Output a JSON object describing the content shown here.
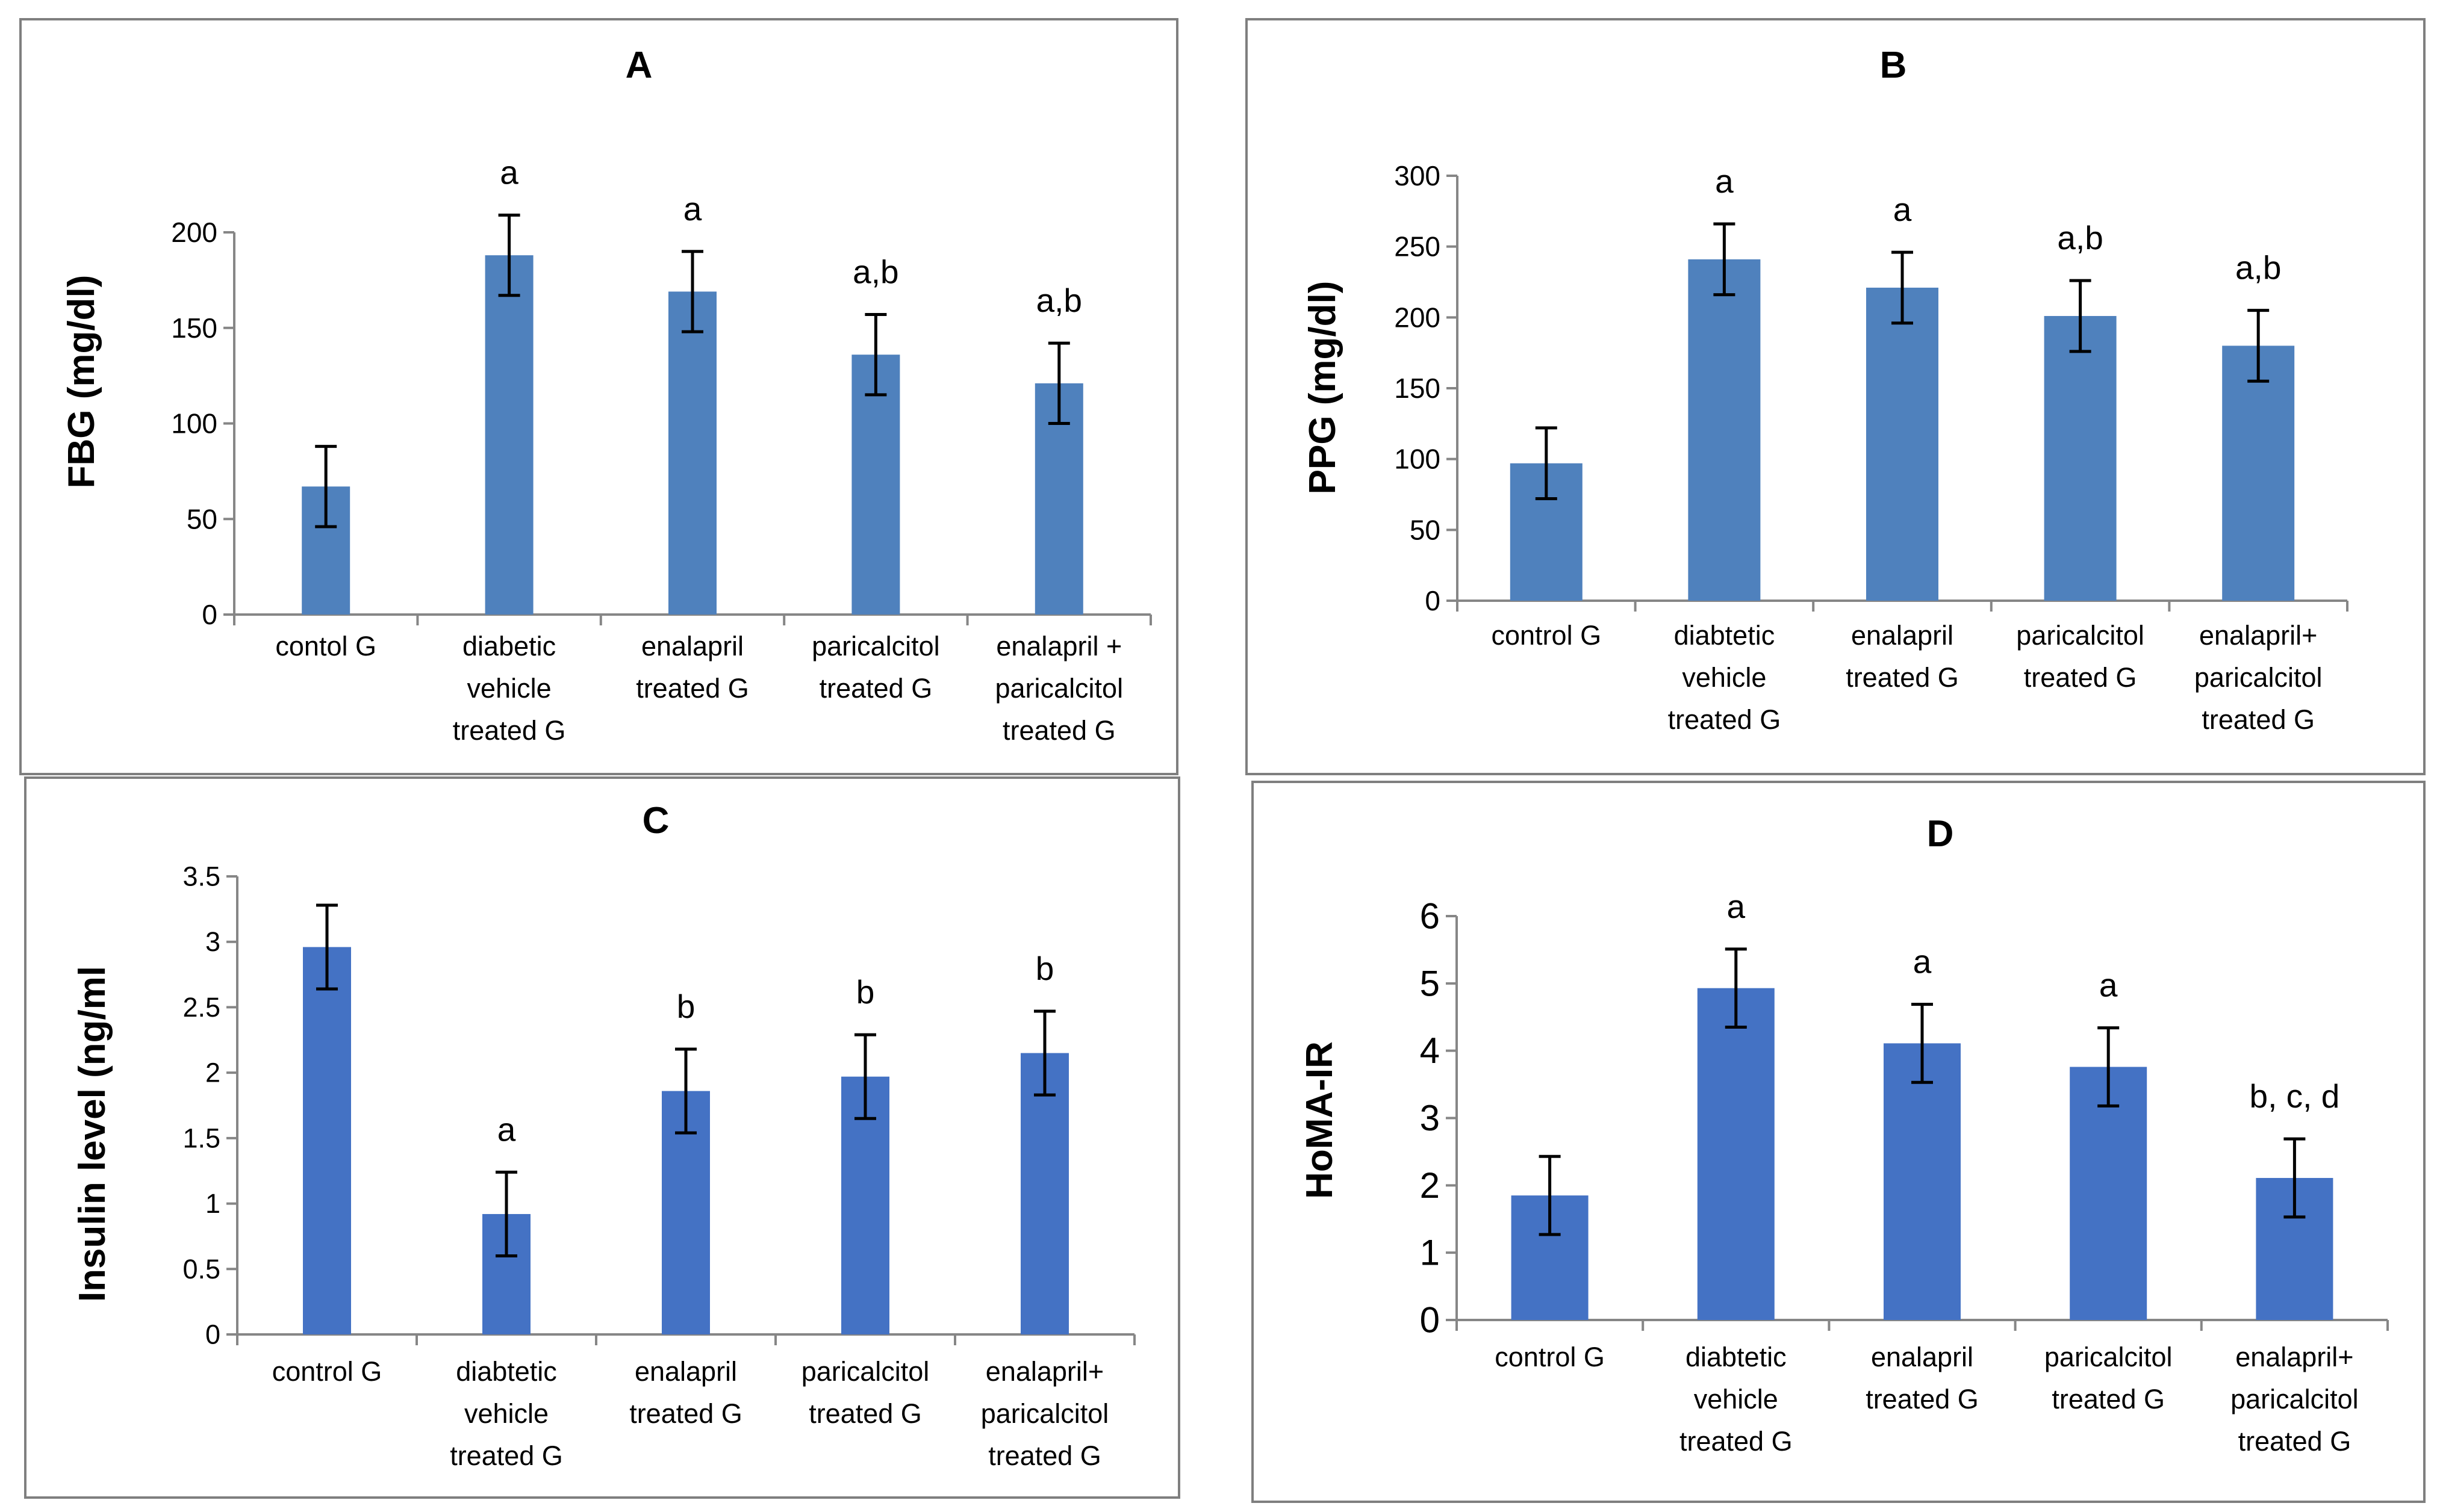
{
  "chart_data": [
    {
      "type": "bar",
      "title": "A",
      "ylabel": "FBG (mg/dl)",
      "xlabel": "",
      "ylim": [
        0,
        200
      ],
      "yticks": [
        "0",
        "50",
        "100",
        "150",
        "200"
      ],
      "yticks_values": [
        0,
        50,
        100,
        150,
        200
      ],
      "categories": [
        [
          "contol G"
        ],
        [
          "diabetic",
          "vehicle",
          "treated G"
        ],
        [
          "enalapril",
          "treated G"
        ],
        [
          "paricalcitol",
          "treated G"
        ],
        [
          "enalapril +",
          "paricalcitol",
          "treated G"
        ]
      ],
      "values": [
        67,
        188,
        169,
        136,
        121
      ],
      "errors": [
        21,
        21,
        21,
        21,
        21
      ],
      "annotations": [
        "",
        "a",
        "a",
        "a,b",
        "a,b"
      ],
      "bar_color": "#4f81bd",
      "grid": false
    },
    {
      "type": "bar",
      "title": "B",
      "ylabel": "PPG (mg/dl)",
      "xlabel": "",
      "ylim": [
        0,
        300
      ],
      "yticks": [
        "0",
        "50",
        "100",
        "150",
        "200",
        "250",
        "300"
      ],
      "yticks_values": [
        0,
        50,
        100,
        150,
        200,
        250,
        300
      ],
      "categories": [
        [
          "control G"
        ],
        [
          "diabtetic",
          "vehicle",
          "treated G"
        ],
        [
          "enalapril",
          "treated G"
        ],
        [
          "paricalcitol",
          "treated G"
        ],
        [
          "enalapril+",
          "paricalcitol",
          "treated G"
        ]
      ],
      "values": [
        97,
        241,
        221,
        201,
        180
      ],
      "errors": [
        25,
        25,
        25,
        25,
        25
      ],
      "annotations": [
        "",
        "a",
        "a",
        "a,b",
        "a,b"
      ],
      "bar_color": "#4f81bd",
      "grid": false
    },
    {
      "type": "bar",
      "title": "C",
      "ylabel": "Insulin level (ng/ml",
      "xlabel": "",
      "ylim": [
        0,
        3.5
      ],
      "yticks": [
        "0",
        "0.5",
        "1",
        "1.5",
        "2",
        "2.5",
        "3",
        "3.5"
      ],
      "yticks_values": [
        0,
        0.5,
        1,
        1.5,
        2,
        2.5,
        3,
        3.5
      ],
      "categories": [
        [
          "control G"
        ],
        [
          "diabtetic",
          "vehicle",
          "treated G"
        ],
        [
          "enalapril",
          "treated G"
        ],
        [
          "paricalcitol",
          "treated G"
        ],
        [
          "enalapril+",
          "paricalcitol",
          "treated G"
        ]
      ],
      "values": [
        2.96,
        0.92,
        1.86,
        1.97,
        2.15
      ],
      "errors": [
        0.32,
        0.32,
        0.32,
        0.32,
        0.32
      ],
      "annotations": [
        "",
        "a",
        "b",
        "b",
        "b"
      ],
      "bar_color": "#4472c4",
      "grid": false
    },
    {
      "type": "bar",
      "title": "D",
      "ylabel": "HoMA-IR",
      "xlabel": "",
      "ylim": [
        0,
        6
      ],
      "yticks": [
        "0",
        "1",
        "2",
        "3",
        "4",
        "5",
        "6"
      ],
      "yticks_values": [
        0,
        1,
        2,
        3,
        4,
        5,
        6
      ],
      "categories": [
        [
          "control G"
        ],
        [
          "diabtetic",
          "vehicle",
          "treated G"
        ],
        [
          "enalapril",
          "treated G"
        ],
        [
          "paricalcitol",
          "treated G"
        ],
        [
          "enalapril+",
          "paricalcitol",
          "treated G"
        ]
      ],
      "values": [
        1.85,
        4.93,
        4.11,
        3.76,
        2.11
      ],
      "errors": [
        0.58,
        0.58,
        0.58,
        0.58,
        0.58
      ],
      "annotations": [
        "",
        "a",
        "a",
        "a",
        "b, c, d"
      ],
      "bar_color": "#4472c4",
      "grid": false
    }
  ]
}
